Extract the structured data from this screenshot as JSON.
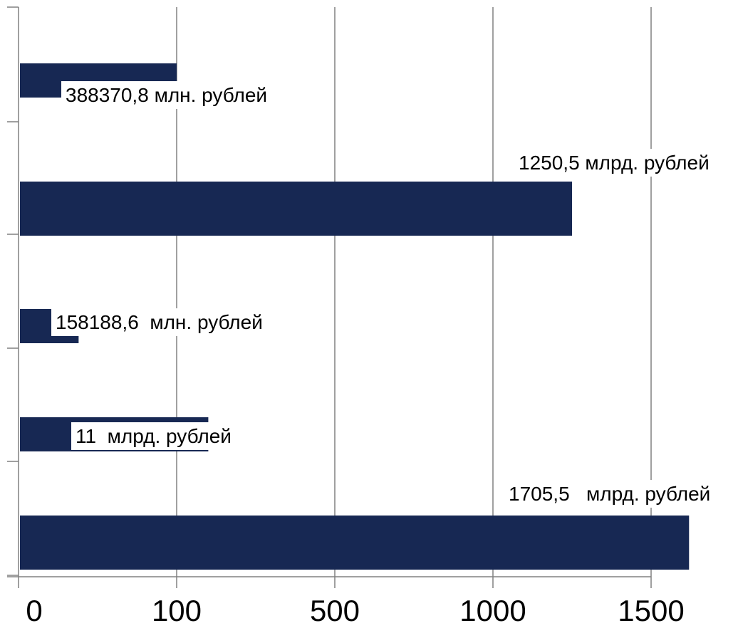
{
  "chart_data": {
    "type": "bar",
    "orientation": "horizontal",
    "grid": true,
    "legend": "none",
    "x_tick_labels": [
      "0",
      "100",
      "500",
      "1000",
      "1500"
    ],
    "bars": [
      {
        "label": "388370,8 млн. рублей",
        "position": 1
      },
      {
        "label": "1250,5 млрд. рублей",
        "position": 3.5
      },
      {
        "label": "158188,6  млн. рублей",
        "position": 0.38
      },
      {
        "label": "11  млрд. рублей",
        "position": 1.2
      },
      {
        "label": "1705,5   млрд. рублей",
        "position": 4.24
      }
    ],
    "colors": {
      "bar": "#172853",
      "grid": "#808080",
      "axis": "#808080"
    }
  }
}
